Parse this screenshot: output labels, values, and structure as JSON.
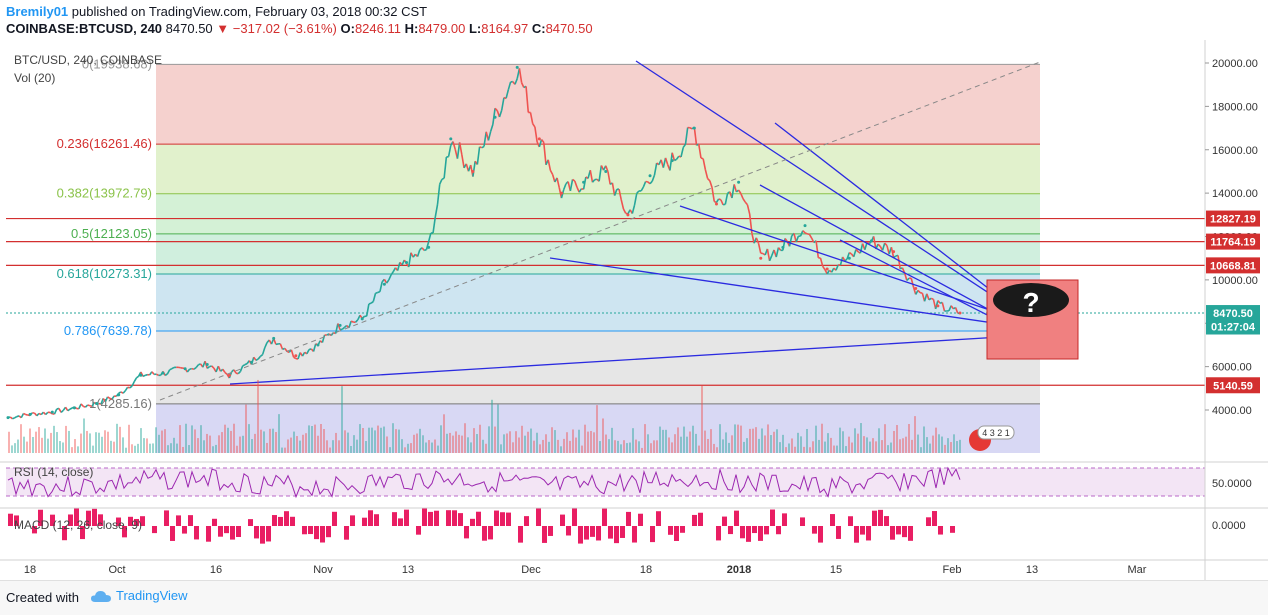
{
  "header": {
    "user": "Bremily01",
    "published": "published on TradingView.com, February 03, 2018 00:32 CST",
    "symbol": "COINBASE:BTCUSD, 240",
    "last": "8470.50",
    "change": "−317.02 (−3.61%)",
    "o_label": "O:",
    "o": "8246.11",
    "h_label": "H:",
    "h": "8479.00",
    "l_label": "L:",
    "l": "8164.97",
    "c_label": "C:",
    "c": "8470.50"
  },
  "legend": {
    "main": "BTC/USD, 240, COINBASE",
    "vol": "Vol (20)",
    "rsi": "RSI (14, close)",
    "macd": "MACD (12, 26, close, 9)"
  },
  "colors": {
    "up": "#26a69a",
    "down": "#ef5350",
    "trendline": "#2b2be0",
    "red_line": "#d32f2f",
    "rsi": "#9c27b0",
    "macd_hist": "#e91e63",
    "tag_red": "#d32f2f",
    "tag_green": "#26a69a"
  },
  "chart_data": {
    "type": "line",
    "title": "BTC/USD, 240, COINBASE",
    "x_ticks": [
      "18",
      "Oct",
      "16",
      "Nov",
      "13",
      "Dec",
      "18",
      "2018",
      "15",
      "Feb",
      "13",
      "Mar"
    ],
    "y_ticks": [
      4000,
      6000,
      8000,
      10000,
      12000,
      14000,
      16000,
      18000,
      20000
    ],
    "y_tick_labels": [
      "4000.00",
      "6000.00",
      "8000.00",
      "10000.00",
      "12000.00",
      "14000.00",
      "16000.00",
      "18000.00",
      "20000.00"
    ],
    "ylim": [
      2000,
      21000
    ],
    "series": [
      {
        "values": [
          3650,
          3800,
          3900,
          4100,
          4300,
          4700,
          5600,
          5700,
          5900,
          6100,
          5600,
          6200,
          7300,
          6500,
          7000,
          7900,
          8200,
          9800,
          10800,
          11500,
          16500,
          15000,
          17500,
          19800,
          16500,
          14000,
          14500,
          15000,
          13000,
          14800,
          15500,
          17000,
          13500,
          14500,
          11000,
          11500,
          12500,
          10500,
          11000,
          11800,
          11300,
          9600,
          8800,
          8470
        ]
      }
    ],
    "fibonacci": [
      {
        "label": "0(19938.68)",
        "value": 19938.68
      },
      {
        "label": "0.236(16261.46)",
        "value": 16261.46
      },
      {
        "label": "0.382(13972.79)",
        "value": 13972.79
      },
      {
        "label": "0.5(12123.05)",
        "value": 12123.05
      },
      {
        "label": "0.618(10273.31)",
        "value": 10273.31
      },
      {
        "label": "0.786(7639.78)",
        "value": 7639.78
      },
      {
        "label": "1(4285.16)",
        "value": 4285.16
      }
    ],
    "horizontal_levels": [
      12827.19,
      11764.19,
      10668.81,
      5140.59
    ],
    "price_tags": [
      {
        "text": "12827.19",
        "value": 12827.19,
        "color": "#d32f2f"
      },
      {
        "text": "11764.19",
        "value": 11764.19,
        "color": "#d32f2f"
      },
      {
        "text": "10668.81",
        "value": 10668.81,
        "color": "#d32f2f"
      },
      {
        "text": "8470.50",
        "value": 8470.5,
        "color": "#26a69a"
      },
      {
        "text": "01:27:04",
        "value": 7850,
        "color": "#26a69a"
      },
      {
        "text": "5140.59",
        "value": 5140.59,
        "color": "#d32f2f"
      }
    ],
    "rsi_ticks": [
      "50.0000"
    ],
    "macd_ticks": [
      "0.0000"
    ],
    "question_glyph": "?",
    "event_badge": "4 3 2 1"
  }
}
